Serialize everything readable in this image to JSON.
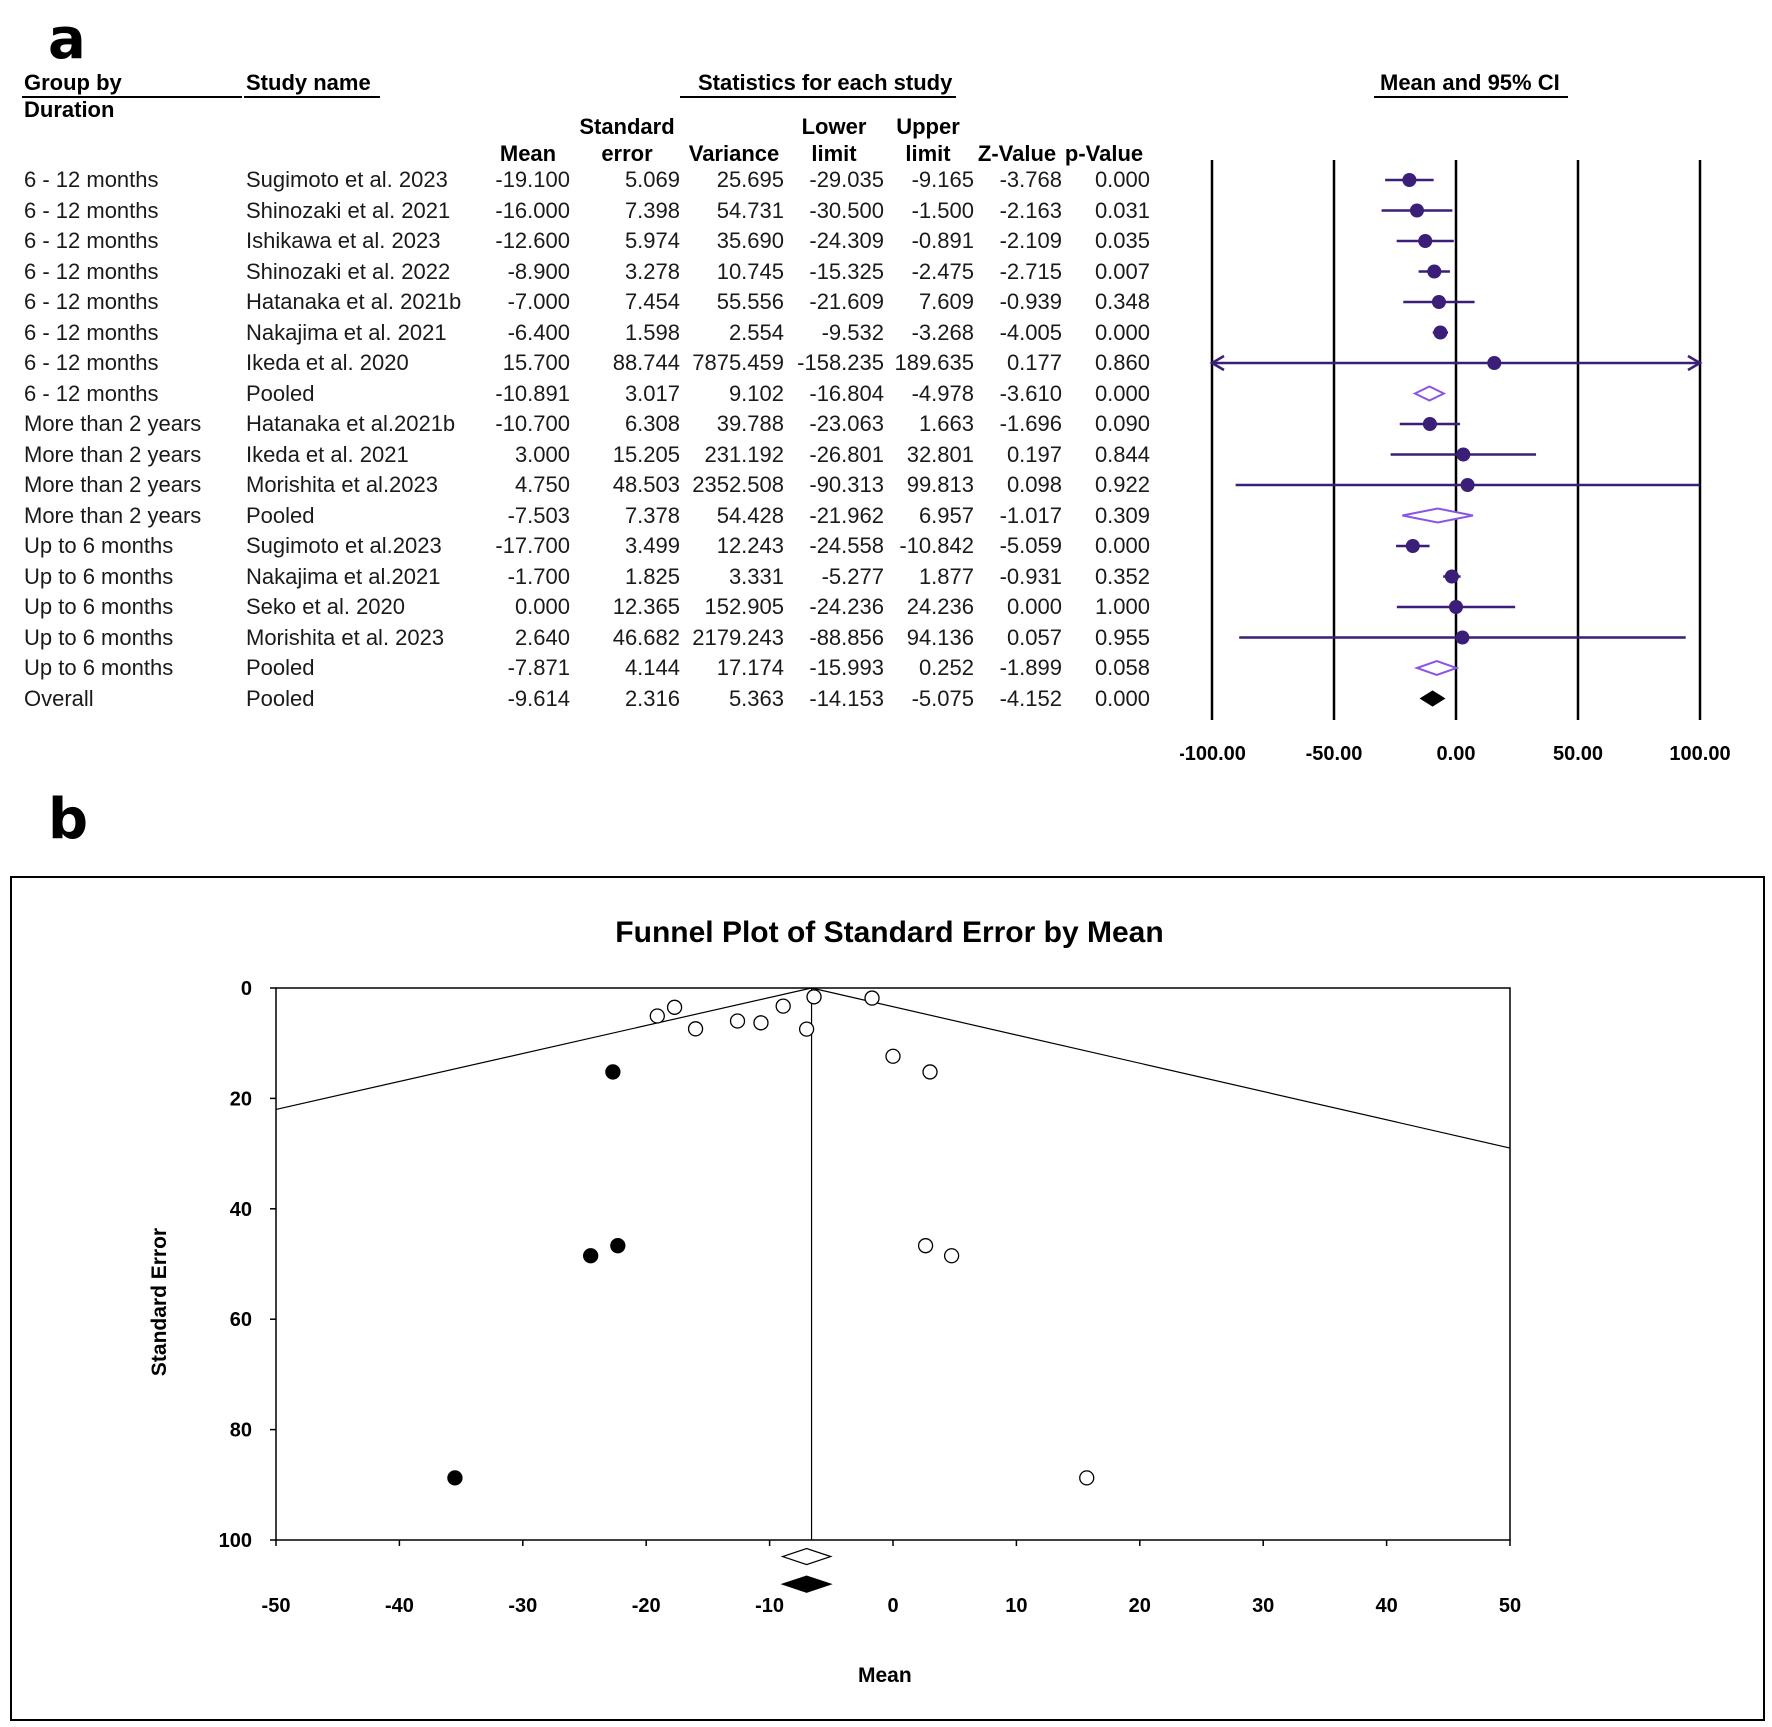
{
  "panel_a_label": "a",
  "panel_b_label": "b",
  "table": {
    "headers": {
      "group_by": "Group by",
      "duration": "Duration",
      "study_name": "Study name",
      "statistics": "Statistics for each study",
      "mean_ci": "Mean and 95% CI",
      "mean": "Mean",
      "se_1": "Standard",
      "se_2": "error",
      "variance": "Variance",
      "lower_1": "Lower",
      "lower_2": "limit",
      "upper_1": "Upper",
      "upper_2": "limit",
      "z": "Z-Value",
      "p": "p-Value"
    },
    "rows": [
      {
        "group": "6 - 12 months",
        "study": "Sugimoto et al. 2023",
        "mean": "-19.100",
        "se": "5.069",
        "variance": "25.695",
        "lower": "-29.035",
        "upper": "-9.165",
        "z": "-3.768",
        "p": "0.000"
      },
      {
        "group": "6 - 12 months",
        "study": "Shinozaki et al. 2021",
        "mean": "-16.000",
        "se": "7.398",
        "variance": "54.731",
        "lower": "-30.500",
        "upper": "-1.500",
        "z": "-2.163",
        "p": "0.031"
      },
      {
        "group": "6 - 12 months",
        "study": "Ishikawa et al. 2023",
        "mean": "-12.600",
        "se": "5.974",
        "variance": "35.690",
        "lower": "-24.309",
        "upper": "-0.891",
        "z": "-2.109",
        "p": "0.035"
      },
      {
        "group": "6 - 12 months",
        "study": "Shinozaki et al. 2022",
        "mean": "-8.900",
        "se": "3.278",
        "variance": "10.745",
        "lower": "-15.325",
        "upper": "-2.475",
        "z": "-2.715",
        "p": "0.007"
      },
      {
        "group": "6 - 12 months",
        "study": "Hatanaka et al. 2021b",
        "mean": "-7.000",
        "se": "7.454",
        "variance": "55.556",
        "lower": "-21.609",
        "upper": "7.609",
        "z": "-0.939",
        "p": "0.348"
      },
      {
        "group": "6 - 12 months",
        "study": "Nakajima et al. 2021",
        "mean": "-6.400",
        "se": "1.598",
        "variance": "2.554",
        "lower": "-9.532",
        "upper": "-3.268",
        "z": "-4.005",
        "p": "0.000"
      },
      {
        "group": "6 - 12 months",
        "study": "Ikeda et al. 2020",
        "mean": "15.700",
        "se": "88.744",
        "variance": "7875.459",
        "lower": "-158.235",
        "upper": "189.635",
        "z": "0.177",
        "p": "0.860"
      },
      {
        "group": "6 - 12 months",
        "study": "Pooled",
        "mean": "-10.891",
        "se": "3.017",
        "variance": "9.102",
        "lower": "-16.804",
        "upper": "-4.978",
        "z": "-3.610",
        "p": "0.000"
      },
      {
        "group": "More than 2 years",
        "study": "Hatanaka et al.2021b",
        "mean": "-10.700",
        "se": "6.308",
        "variance": "39.788",
        "lower": "-23.063",
        "upper": "1.663",
        "z": "-1.696",
        "p": "0.090"
      },
      {
        "group": "More than 2 years",
        "study": "Ikeda et al. 2021",
        "mean": "3.000",
        "se": "15.205",
        "variance": "231.192",
        "lower": "-26.801",
        "upper": "32.801",
        "z": "0.197",
        "p": "0.844"
      },
      {
        "group": "More than 2 years",
        "study": "Morishita et al.2023",
        "mean": "4.750",
        "se": "48.503",
        "variance": "2352.508",
        "lower": "-90.313",
        "upper": "99.813",
        "z": "0.098",
        "p": "0.922"
      },
      {
        "group": "More than 2 years",
        "study": "Pooled",
        "mean": "-7.503",
        "se": "7.378",
        "variance": "54.428",
        "lower": "-21.962",
        "upper": "6.957",
        "z": "-1.017",
        "p": "0.309"
      },
      {
        "group": "Up to 6 months",
        "study": "Sugimoto et al.2023",
        "mean": "-17.700",
        "se": "3.499",
        "variance": "12.243",
        "lower": "-24.558",
        "upper": "-10.842",
        "z": "-5.059",
        "p": "0.000"
      },
      {
        "group": "Up to 6 months",
        "study": "Nakajima et al.2021",
        "mean": "-1.700",
        "se": "1.825",
        "variance": "3.331",
        "lower": "-5.277",
        "upper": "1.877",
        "z": "-0.931",
        "p": "0.352"
      },
      {
        "group": "Up to 6 months",
        "study": "Seko et al. 2020",
        "mean": "0.000",
        "se": "12.365",
        "variance": "152.905",
        "lower": "-24.236",
        "upper": "24.236",
        "z": "0.000",
        "p": "1.000"
      },
      {
        "group": "Up to 6 months",
        "study": "Morishita et al. 2023",
        "mean": "2.640",
        "se": "46.682",
        "variance": "2179.243",
        "lower": "-88.856",
        "upper": "94.136",
        "z": "0.057",
        "p": "0.955"
      },
      {
        "group": "Up to 6 months",
        "study": "Pooled",
        "mean": "-7.871",
        "se": "4.144",
        "variance": "17.174",
        "lower": "-15.993",
        "upper": "0.252",
        "z": "-1.899",
        "p": "0.058"
      },
      {
        "group": "Overall",
        "study": "Pooled",
        "mean": "-9.614",
        "se": "2.316",
        "variance": "5.363",
        "lower": "-14.153",
        "upper": "-5.075",
        "z": "-4.152",
        "p": "0.000"
      }
    ]
  },
  "chart_data": [
    {
      "type": "scatter",
      "subtype": "forest",
      "title": "Mean and 95% CI",
      "xlim": [
        -100,
        100
      ],
      "xticks": [
        "-100.00",
        "-50.00",
        "0.00",
        "50.00",
        "100.00"
      ],
      "grid": "vertical lines at ticks",
      "colors": {
        "study": "#3b1e78",
        "subgroup_pooled": "#8a55e6",
        "overall": "#000000"
      },
      "points": [
        {
          "mean": -19.1,
          "lower": -29.035,
          "upper": -9.165,
          "kind": "study"
        },
        {
          "mean": -16.0,
          "lower": -30.5,
          "upper": -1.5,
          "kind": "study"
        },
        {
          "mean": -12.6,
          "lower": -24.309,
          "upper": -0.891,
          "kind": "study"
        },
        {
          "mean": -8.9,
          "lower": -15.325,
          "upper": -2.475,
          "kind": "study"
        },
        {
          "mean": -7.0,
          "lower": -21.609,
          "upper": 7.609,
          "kind": "study"
        },
        {
          "mean": -6.4,
          "lower": -9.532,
          "upper": -3.268,
          "kind": "study"
        },
        {
          "mean": 15.7,
          "lower": -158.235,
          "upper": 189.635,
          "kind": "study"
        },
        {
          "mean": -10.891,
          "lower": -16.804,
          "upper": -4.978,
          "kind": "pooled"
        },
        {
          "mean": -10.7,
          "lower": -23.063,
          "upper": 1.663,
          "kind": "study"
        },
        {
          "mean": 3.0,
          "lower": -26.801,
          "upper": 32.801,
          "kind": "study"
        },
        {
          "mean": 4.75,
          "lower": -90.313,
          "upper": 99.813,
          "kind": "study"
        },
        {
          "mean": -7.503,
          "lower": -21.962,
          "upper": 6.957,
          "kind": "pooled"
        },
        {
          "mean": -17.7,
          "lower": -24.558,
          "upper": -10.842,
          "kind": "study"
        },
        {
          "mean": -1.7,
          "lower": -5.277,
          "upper": 1.877,
          "kind": "study"
        },
        {
          "mean": 0.0,
          "lower": -24.236,
          "upper": 24.236,
          "kind": "study"
        },
        {
          "mean": 2.64,
          "lower": -88.856,
          "upper": 94.136,
          "kind": "study"
        },
        {
          "mean": -7.871,
          "lower": -15.993,
          "upper": 0.252,
          "kind": "pooled"
        },
        {
          "mean": -9.614,
          "lower": -14.153,
          "upper": -5.075,
          "kind": "overall"
        }
      ]
    },
    {
      "type": "scatter",
      "subtype": "funnel",
      "title": "Funnel Plot of Standard Error by Mean",
      "xlabel": "Mean",
      "ylabel": "Standard Error",
      "xlim": [
        -50,
        50
      ],
      "ylim": [
        0,
        100
      ],
      "y_inverted": true,
      "xticks": [
        -50,
        -40,
        -30,
        -20,
        -10,
        0,
        10,
        20,
        30,
        40,
        50
      ],
      "yticks": [
        0,
        20,
        40,
        60,
        80,
        100
      ],
      "center_line_x": -6.6,
      "funnel_lines": [
        {
          "from": [
            -6.6,
            0
          ],
          "to": [
            -50,
            22
          ]
        },
        {
          "from": [
            -6.6,
            0
          ],
          "to": [
            50,
            29
          ]
        }
      ],
      "observed_studies": [
        {
          "x": -19.1,
          "y": 5.069
        },
        {
          "x": -16.0,
          "y": 7.398
        },
        {
          "x": -12.6,
          "y": 5.974
        },
        {
          "x": -8.9,
          "y": 3.278
        },
        {
          "x": -7.0,
          "y": 7.454
        },
        {
          "x": -6.4,
          "y": 1.598
        },
        {
          "x": 15.7,
          "y": 88.744
        },
        {
          "x": -10.7,
          "y": 6.308
        },
        {
          "x": 3.0,
          "y": 15.205
        },
        {
          "x": 4.75,
          "y": 48.503
        },
        {
          "x": -17.7,
          "y": 3.499
        },
        {
          "x": -1.7,
          "y": 1.825
        },
        {
          "x": 0.0,
          "y": 12.365
        },
        {
          "x": 2.64,
          "y": 46.682
        }
      ],
      "imputed_studies": [
        {
          "x": -22.7,
          "y": 15.205
        },
        {
          "x": -24.5,
          "y": 48.503
        },
        {
          "x": -22.3,
          "y": 46.682
        },
        {
          "x": -35.5,
          "y": 88.744
        }
      ],
      "observed_summary": {
        "x": -7.0,
        "y": 103.0
      },
      "adjusted_summary": {
        "x": -7.0,
        "y": 108.0
      }
    }
  ]
}
